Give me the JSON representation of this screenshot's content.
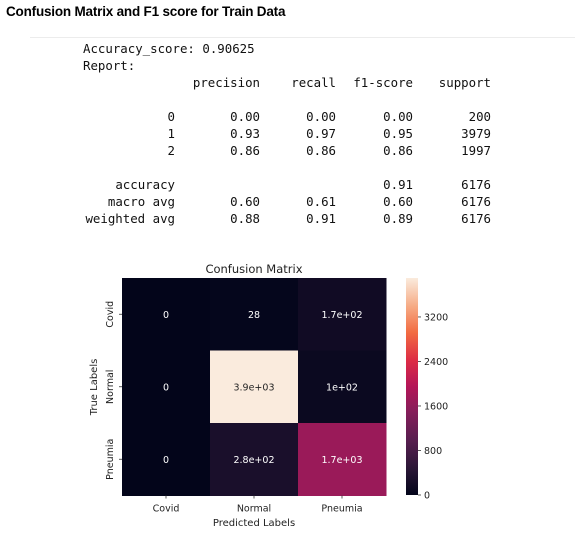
{
  "output": {
    "heading": "Confusion Matrix and F1 score for Train Data",
    "accuracy_line": "Accuracy_score: 0.90625",
    "report_label": "Report:"
  },
  "report": {
    "header": [
      "precision",
      "recall",
      "f1-score",
      "support"
    ],
    "rows": [
      {
        "label": "0",
        "precision": "0.00",
        "recall": "0.00",
        "f1": "0.00",
        "support": "200"
      },
      {
        "label": "1",
        "precision": "0.93",
        "recall": "0.97",
        "f1": "0.95",
        "support": "3979"
      },
      {
        "label": "2",
        "precision": "0.86",
        "recall": "0.86",
        "f1": "0.86",
        "support": "1997"
      },
      {
        "label": "accuracy",
        "precision": "",
        "recall": "",
        "f1": "0.91",
        "support": "6176"
      },
      {
        "label": "macro avg",
        "precision": "0.60",
        "recall": "0.61",
        "f1": "0.60",
        "support": "6176"
      },
      {
        "label": "weighted avg",
        "precision": "0.88",
        "recall": "0.91",
        "f1": "0.89",
        "support": "6176"
      }
    ]
  },
  "chart_data": {
    "type": "heatmap",
    "title": "Confusion Matrix",
    "xlabel": "Predicted Labels",
    "ylabel": "True Labels",
    "x_categories": [
      "Covid",
      "Normal",
      "Pneumia"
    ],
    "y_categories": [
      "Covid",
      "Normal",
      "Pneumia"
    ],
    "values": [
      [
        0,
        28,
        170
      ],
      [
        0,
        3900,
        100
      ],
      [
        0,
        280,
        1700
      ]
    ],
    "annotations": [
      [
        "0",
        "28",
        "1.7e+02"
      ],
      [
        "0",
        "3.9e+03",
        "1e+02"
      ],
      [
        "0",
        "2.8e+02",
        "1.7e+03"
      ]
    ],
    "colorbar": {
      "min": 0,
      "max": 3900,
      "ticks": [
        0,
        800,
        1600,
        2400,
        3200
      ]
    },
    "colormap": "rocket"
  }
}
